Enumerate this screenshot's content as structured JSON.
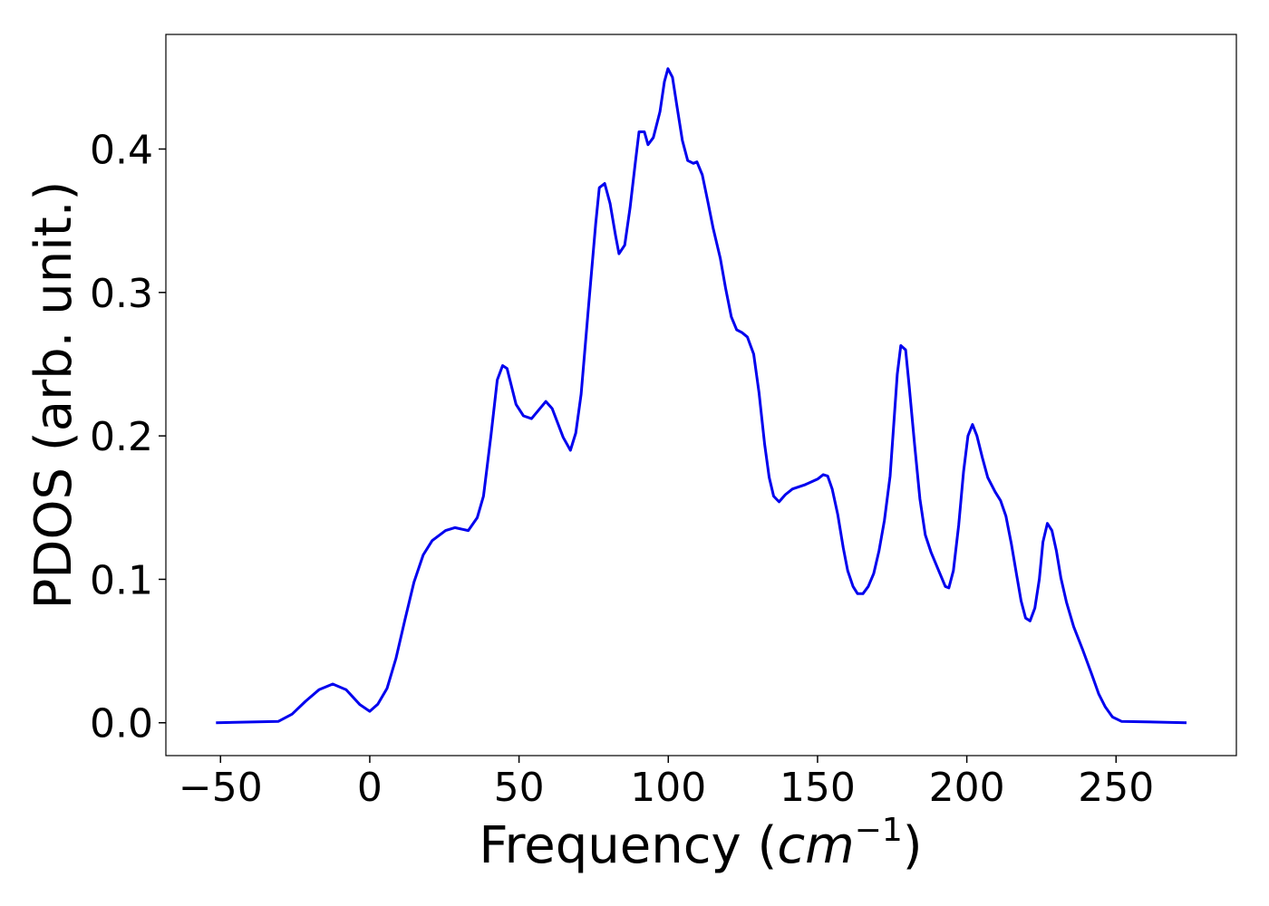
{
  "chart_data": {
    "type": "line",
    "xlabel": [
      "Frequency (",
      "cm",
      "−1",
      ")"
    ],
    "ylabel": "PDOS (arb. unit.)",
    "xlim": [
      -68.3,
      290.3
    ],
    "ylim": [
      -0.0229,
      0.4799
    ],
    "xticks": [
      {
        "value": -50,
        "label": "−50"
      },
      0,
      50,
      100,
      150,
      200,
      250
    ],
    "yticks": [
      {
        "value": 0,
        "label": "0.0"
      },
      0.1,
      0.2,
      0.3,
      0.4
    ],
    "grid": false,
    "series": [
      {
        "color": "#0000ee",
        "x": [
          -51.5,
          -30.6,
          -26,
          -21.5,
          -17,
          -12.4,
          -7.9,
          -3.3,
          0,
          2.7,
          5.8,
          8.8,
          11.8,
          14.8,
          17.9,
          20.9,
          25.4,
          28.5,
          33,
          36,
          38.1,
          40.6,
          42.7,
          44.5,
          46,
          49,
          51.5,
          54.2,
          56.6,
          59,
          61.1,
          64.8,
          67.2,
          69,
          70.8,
          73.2,
          75.7,
          76.9,
          78.7,
          80.5,
          82.3,
          83.5,
          85.4,
          87.2,
          89,
          90.2,
          92,
          93.2,
          95,
          97.2,
          98.7,
          99.9,
          101.4,
          102.9,
          104.7,
          106.5,
          108.4,
          109.6,
          111.4,
          113.2,
          115,
          117.4,
          119.2,
          121.1,
          122.9,
          124.7,
          126.5,
          128.6,
          130.4,
          132.3,
          133.8,
          135.3,
          137.1,
          139.2,
          141.6,
          145.9,
          150.1,
          151.9,
          153.4,
          154.9,
          156.8,
          158.6,
          160.1,
          161.9,
          163.4,
          165.2,
          167,
          168.8,
          170.6,
          172.4,
          174.3,
          175.5,
          176.7,
          177.9,
          179.5,
          180.7,
          182.5,
          184.3,
          186.1,
          188,
          190.4,
          192.8,
          194,
          195.5,
          197.3,
          198.9,
          200.4,
          201.9,
          203.4,
          205.2,
          207,
          209.5,
          211.3,
          213.1,
          214.9,
          216.7,
          218.2,
          219.7,
          221.2,
          222.8,
          224.3,
          225.5,
          227,
          228.5,
          230,
          231.5,
          233.4,
          235.8,
          238.8,
          241.8,
          244.2,
          246.4,
          248.8,
          251.8,
          273.6
        ],
        "values": [
          0,
          0.001,
          0.006,
          0.015,
          0.023,
          0.027,
          0.023,
          0.0126,
          0.008,
          0.013,
          0.024,
          0.045,
          0.072,
          0.098,
          0.117,
          0.127,
          0.134,
          0.136,
          0.134,
          0.143,
          0.158,
          0.2,
          0.239,
          0.249,
          0.247,
          0.222,
          0.214,
          0.212,
          0.218,
          0.224,
          0.219,
          0.199,
          0.19,
          0.202,
          0.229,
          0.288,
          0.348,
          0.373,
          0.376,
          0.362,
          0.34,
          0.327,
          0.333,
          0.359,
          0.391,
          0.412,
          0.412,
          0.403,
          0.408,
          0.426,
          0.447,
          0.456,
          0.45,
          0.43,
          0.406,
          0.392,
          0.39,
          0.391,
          0.382,
          0.364,
          0.345,
          0.324,
          0.303,
          0.283,
          0.274,
          0.272,
          0.269,
          0.257,
          0.23,
          0.194,
          0.171,
          0.158,
          0.154,
          0.159,
          0.163,
          0.166,
          0.17,
          0.173,
          0.172,
          0.163,
          0.145,
          0.122,
          0.106,
          0.095,
          0.09,
          0.09,
          0.095,
          0.104,
          0.12,
          0.141,
          0.172,
          0.207,
          0.243,
          0.263,
          0.26,
          0.235,
          0.194,
          0.156,
          0.131,
          0.119,
          0.107,
          0.095,
          0.094,
          0.106,
          0.138,
          0.175,
          0.2,
          0.208,
          0.2,
          0.185,
          0.171,
          0.161,
          0.155,
          0.144,
          0.125,
          0.103,
          0.085,
          0.073,
          0.071,
          0.08,
          0.1,
          0.126,
          0.139,
          0.134,
          0.12,
          0.101,
          0.084,
          0.067,
          0.051,
          0.034,
          0.02,
          0.011,
          0.004,
          0.001,
          0
        ]
      }
    ]
  }
}
